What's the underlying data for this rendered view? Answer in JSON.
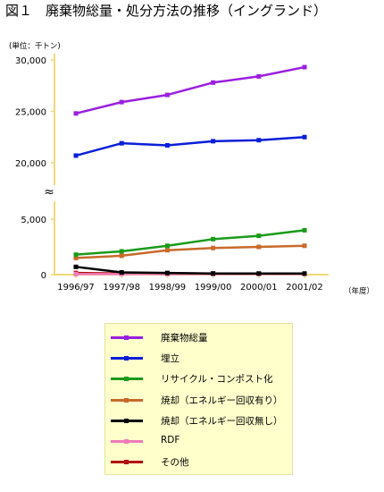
{
  "title": "図１　廃棄物総量・処分方法の推移（イングランド）",
  "chart_data": {
    "type": "line",
    "unit_label": "(単位：千トン)",
    "xlabel_suffix": "（年度）",
    "categories": [
      "1996/97",
      "1997/98",
      "1998/99",
      "1999/00",
      "2000/01",
      "2001/02"
    ],
    "y_ticks_upper": [
      "30,000",
      "25,000",
      "20,000"
    ],
    "y_ticks_lower": [
      "5,000",
      "0"
    ],
    "axis_break": "≈",
    "grid": false,
    "legend_position": "bottom",
    "series": [
      {
        "name": "廃棄物総量",
        "color": "#9a1fe0",
        "values": [
          24800,
          25900,
          26600,
          27800,
          28400,
          29300
        ]
      },
      {
        "name": "埋立",
        "color": "#0a1fd8",
        "values": [
          20700,
          21900,
          21700,
          22100,
          22200,
          22500
        ]
      },
      {
        "name": "リサイクル・コンポスト化",
        "color": "#1a9a1a",
        "values": [
          1800,
          2100,
          2600,
          3200,
          3500,
          4000
        ]
      },
      {
        "name": "焼却（エネルギー回収有り）",
        "color": "#c86a2a",
        "values": [
          1500,
          1700,
          2200,
          2400,
          2500,
          2600
        ]
      },
      {
        "name": "焼却（エネルギー回収無し）",
        "color": "#000000",
        "values": [
          700,
          200,
          150,
          100,
          100,
          100
        ]
      },
      {
        "name": "RDF",
        "color": "#f07ab8",
        "values": [
          50,
          50,
          50,
          50,
          50,
          50
        ]
      },
      {
        "name": "その他",
        "color": "#b01010",
        "values": [
          150,
          100,
          100,
          100,
          80,
          80
        ]
      }
    ]
  }
}
